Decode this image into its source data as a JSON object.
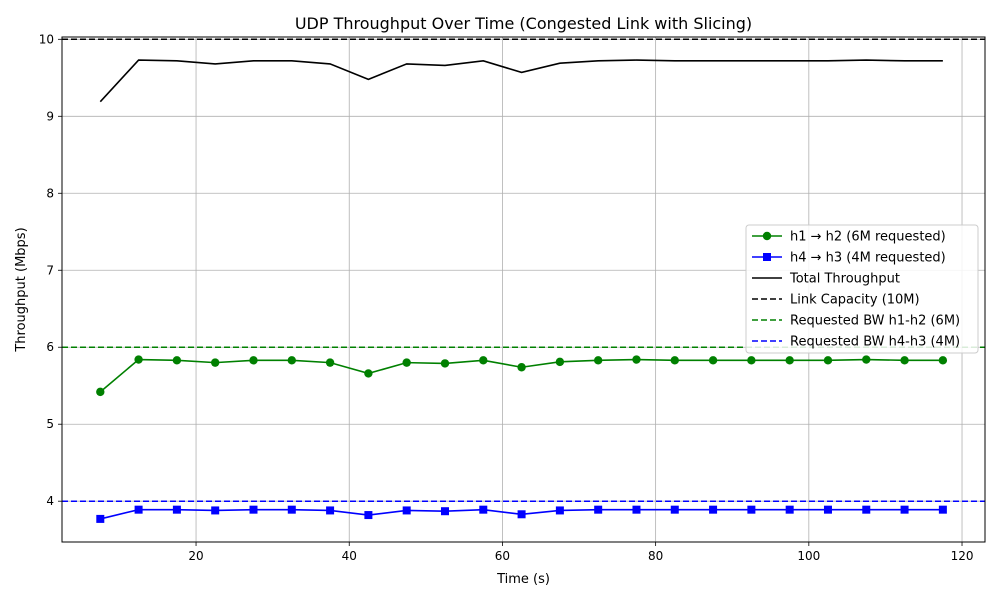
{
  "chart_data": {
    "type": "line",
    "title": "UDP Throughput Over Time (Congested Link with Slicing)",
    "xlabel": "Time (s)",
    "ylabel": "Throughput (Mbps)",
    "xlim": [
      2.5,
      123
    ],
    "ylim": [
      3.47,
      10.03
    ],
    "xticks": [
      20,
      40,
      60,
      80,
      100,
      120
    ],
    "yticks": [
      4,
      5,
      6,
      7,
      8,
      9,
      10
    ],
    "grid": true,
    "legend_position": "right",
    "x": [
      7.5,
      12.5,
      17.5,
      22.5,
      27.5,
      32.5,
      37.5,
      42.5,
      47.5,
      52.5,
      57.5,
      62.5,
      67.5,
      72.5,
      77.5,
      82.5,
      87.5,
      92.5,
      97.5,
      102.5,
      107.5,
      112.5,
      117.5
    ],
    "series": [
      {
        "name": "h1 → h2 (6M requested)",
        "color": "#008000",
        "marker": "circle",
        "values": [
          5.42,
          5.84,
          5.83,
          5.8,
          5.83,
          5.83,
          5.8,
          5.66,
          5.8,
          5.79,
          5.83,
          5.74,
          5.81,
          5.83,
          5.84,
          5.83,
          5.83,
          5.83,
          5.83,
          5.83,
          5.84,
          5.83,
          5.83
        ]
      },
      {
        "name": "h4 → h3 (4M requested)",
        "color": "#0000ff",
        "marker": "square",
        "values": [
          3.77,
          3.89,
          3.89,
          3.88,
          3.89,
          3.89,
          3.88,
          3.82,
          3.88,
          3.87,
          3.89,
          3.83,
          3.88,
          3.89,
          3.89,
          3.89,
          3.89,
          3.89,
          3.89,
          3.89,
          3.89,
          3.89,
          3.89
        ]
      },
      {
        "name": "Total Throughput",
        "color": "#000000",
        "marker": "none",
        "values": [
          9.19,
          9.73,
          9.72,
          9.68,
          9.72,
          9.72,
          9.68,
          9.48,
          9.68,
          9.66,
          9.72,
          9.57,
          9.69,
          9.72,
          9.73,
          9.72,
          9.72,
          9.72,
          9.72,
          9.72,
          9.73,
          9.72,
          9.72
        ]
      }
    ],
    "reference_lines": [
      {
        "name": "Link Capacity (10M)",
        "value": 10,
        "color": "#000000",
        "style": "dashed"
      },
      {
        "name": "Requested BW h1-h2 (6M)",
        "value": 6,
        "color": "#008000",
        "style": "dashed"
      },
      {
        "name": "Requested BW h4-h3 (4M)",
        "value": 4,
        "color": "#0000ff",
        "style": "dashed"
      }
    ]
  }
}
